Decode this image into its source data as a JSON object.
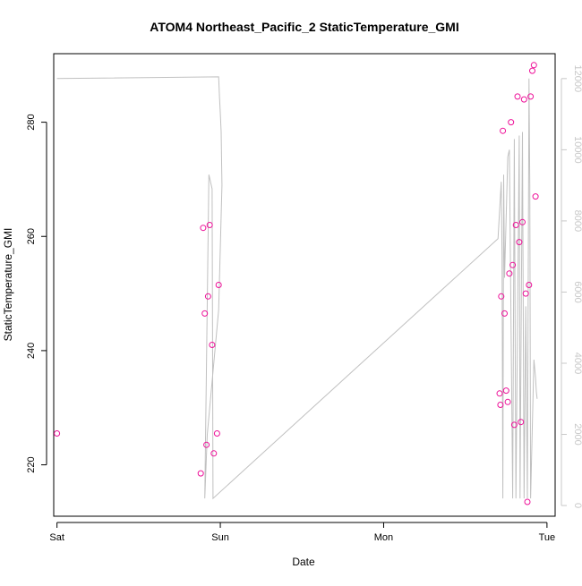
{
  "chart_data": {
    "type": "scatter",
    "title": "ATOM4 Northeast_Pacific_2 StaticTemperature_GMI",
    "xlabel": "Date",
    "ylabel": "StaticTemperature_GMI",
    "x_ticks": [
      "Sat",
      "Sun",
      "Mon",
      "Tue"
    ],
    "xlim": [
      -0.02,
      3.05
    ],
    "ylim": [
      211,
      292
    ],
    "y_ticks": [
      220,
      240,
      260,
      280
    ],
    "y2lim": [
      -300,
      12700
    ],
    "y2_ticks": [
      0,
      2000,
      4000,
      6000,
      8000,
      10000,
      12000
    ],
    "grid": false,
    "colors": {
      "points": "#ee1199",
      "line": "#c0c0c0",
      "right_axis": "#c8c8c8"
    },
    "series": [
      {
        "type": "scatter",
        "axis": "left",
        "x": [
          0.0,
          0.88,
          0.895,
          0.905,
          0.915,
          0.925,
          0.935,
          0.95,
          0.96,
          0.98,
          0.99,
          2.71,
          2.715,
          2.72,
          2.73,
          2.74,
          2.75,
          2.76,
          2.77,
          2.78,
          2.79,
          2.8,
          2.81,
          2.82,
          2.83,
          2.84,
          2.85,
          2.86,
          2.87,
          2.88,
          2.89,
          2.9,
          2.91,
          2.92,
          2.93
        ],
        "values": [
          225.5,
          218.5,
          261.5,
          246.5,
          223.5,
          249.5,
          262.0,
          241.0,
          222.0,
          225.5,
          251.5,
          232.5,
          230.5,
          249.5,
          278.5,
          246.5,
          233.0,
          231.0,
          253.5,
          280.0,
          255.0,
          227.0,
          262.0,
          284.5,
          259.0,
          227.5,
          262.5,
          284.0,
          250.0,
          213.5,
          251.5,
          284.5,
          289.0,
          290.0,
          267.0
        ]
      },
      {
        "type": "line",
        "axis": "right",
        "x": [
          0.0,
          0.99,
          0.995,
          1.0,
          1.005,
          1.01,
          0.99,
          0.92,
          0.905,
          0.93,
          0.95,
          0.955,
          2.7,
          2.72,
          2.725,
          2.73,
          2.735,
          2.74,
          2.76,
          2.77,
          2.79,
          2.8,
          2.805,
          2.81,
          2.83,
          2.835,
          2.85,
          2.86,
          2.87,
          2.88,
          2.89,
          2.895,
          2.9,
          2.92,
          2.93,
          2.935,
          2.94
        ],
        "values": [
          12000,
          12050,
          11500,
          11000,
          10500,
          9000,
          5500,
          2000,
          200,
          9300,
          8900,
          200,
          7500,
          9100,
          7000,
          200,
          9300,
          6400,
          9800,
          10000,
          200,
          10300,
          5000,
          200,
          10400,
          200,
          10500,
          200,
          5600,
          200,
          12000,
          9000,
          200,
          4100,
          3600,
          3200,
          3000
        ]
      }
    ]
  }
}
